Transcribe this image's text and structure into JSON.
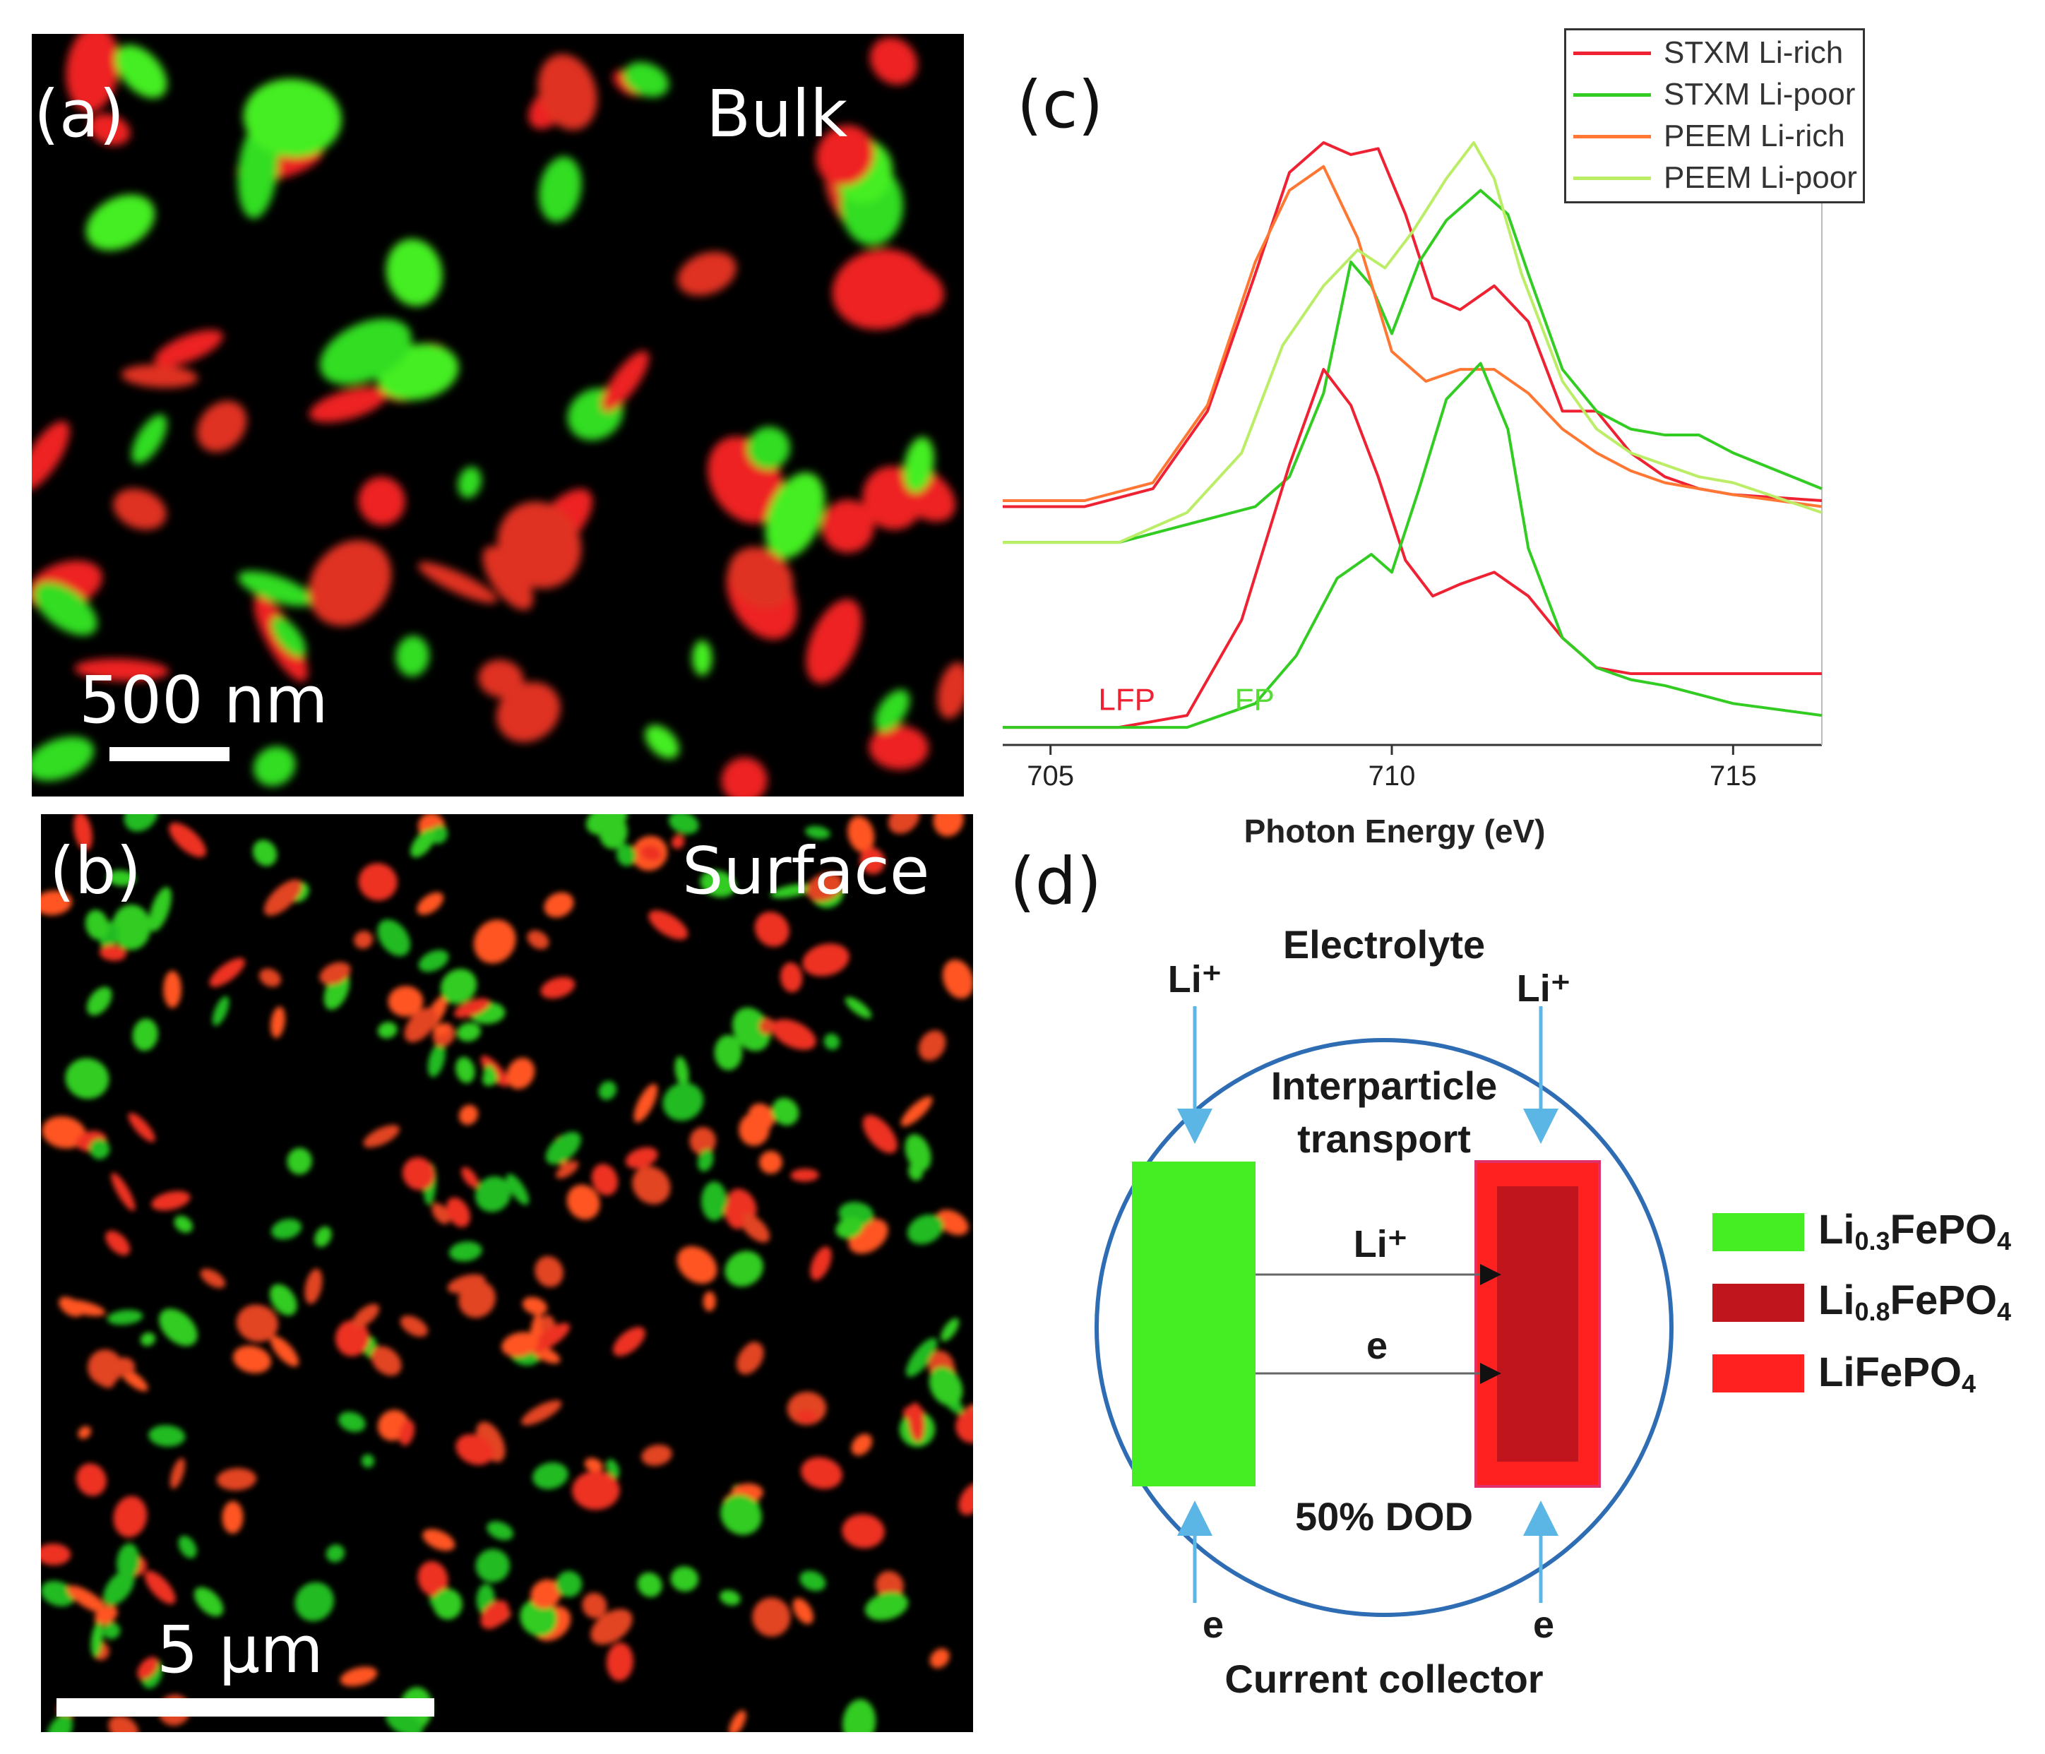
{
  "panel_a": {
    "label": "(a)",
    "region": "Bulk",
    "scale": "500 nm"
  },
  "panel_b": {
    "label": "(b)",
    "region": "Surface",
    "scale": "5 µm"
  },
  "panel_c": {
    "label": "(c)"
  },
  "panel_d": {
    "label": "(d)",
    "electrolyte": "Electrolyte",
    "li_top_left": "Li⁺",
    "li_top_right": "Li⁺",
    "interparticle_line1": "Interparticle",
    "interparticle_line2": "transport",
    "li_middle": "Li⁺",
    "e_middle": "e",
    "dod": "50% DOD",
    "e_bottom_left": "e",
    "e_bottom_right": "e",
    "current_collector": "Current collector",
    "legend": [
      {
        "prefix": "Li",
        "sub": "0.3",
        "suffix": "FePO",
        "sub2": "4",
        "color": "#44ee22"
      },
      {
        "prefix": "Li",
        "sub": "0.8",
        "suffix": "FePO",
        "sub2": "4",
        "color": "#c0151c"
      },
      {
        "prefix": "LiFePO",
        "sub": "4",
        "suffix": "",
        "sub2": "",
        "color": "#ff2020"
      }
    ]
  },
  "chart_data": {
    "type": "line",
    "title": "",
    "xlabel": "Photon Energy (eV)",
    "ylabel": "",
    "xlim": [
      704.3,
      716.3
    ],
    "xticks": [
      705,
      710,
      715
    ],
    "legend_position": "top-right",
    "annotations": [
      {
        "text": "LFP",
        "color": "#ee2233",
        "x": 705.7,
        "y": 0.03
      },
      {
        "text": "FP",
        "color": "#55dd33",
        "x": 707.7,
        "y": 0.03
      }
    ],
    "series": [
      {
        "name": "STXM Li-rich",
        "color": "#ee2233",
        "in_legend": true,
        "x": [
          704.3,
          705.5,
          706.5,
          707.3,
          708.0,
          708.5,
          709.0,
          709.4,
          709.8,
          710.2,
          710.6,
          711.0,
          711.5,
          712.0,
          712.5,
          713.0,
          713.5,
          714.0,
          714.5,
          715.0,
          716.3
        ],
        "y": [
          0.39,
          0.39,
          0.42,
          0.55,
          0.78,
          0.95,
          1.0,
          0.98,
          0.99,
          0.88,
          0.74,
          0.72,
          0.76,
          0.7,
          0.55,
          0.55,
          0.48,
          0.44,
          0.42,
          0.41,
          0.4
        ]
      },
      {
        "name": "STXM Li-poor",
        "color": "#33cc22",
        "in_legend": true,
        "x": [
          704.3,
          706.0,
          707.0,
          708.0,
          708.5,
          709.0,
          709.4,
          709.7,
          710.0,
          710.4,
          710.8,
          711.3,
          711.7,
          712.0,
          712.5,
          713.0,
          713.5,
          714.0,
          714.5,
          715.0,
          716.3
        ],
        "y": [
          0.33,
          0.33,
          0.36,
          0.39,
          0.44,
          0.58,
          0.8,
          0.76,
          0.68,
          0.8,
          0.87,
          0.92,
          0.88,
          0.78,
          0.62,
          0.55,
          0.52,
          0.51,
          0.51,
          0.48,
          0.42
        ]
      },
      {
        "name": "PEEM Li-rich",
        "color": "#ff7733",
        "in_legend": true,
        "x": [
          704.3,
          705.5,
          706.5,
          707.3,
          708.0,
          708.5,
          709.0,
          709.5,
          710.0,
          710.5,
          711.0,
          711.5,
          712.0,
          712.5,
          713.0,
          713.5,
          714.0,
          714.5,
          715.0,
          716.3
        ],
        "y": [
          0.4,
          0.4,
          0.43,
          0.56,
          0.8,
          0.92,
          0.96,
          0.84,
          0.65,
          0.6,
          0.62,
          0.62,
          0.58,
          0.52,
          0.48,
          0.45,
          0.43,
          0.42,
          0.41,
          0.39
        ]
      },
      {
        "name": "PEEM Li-poor",
        "color": "#bbee66",
        "in_legend": true,
        "x": [
          704.3,
          706.0,
          707.0,
          707.8,
          708.4,
          709.0,
          709.5,
          709.9,
          710.3,
          710.8,
          711.2,
          711.5,
          711.9,
          712.5,
          713.0,
          713.5,
          714.0,
          714.5,
          715.0,
          716.3
        ],
        "y": [
          0.33,
          0.33,
          0.38,
          0.48,
          0.66,
          0.76,
          0.82,
          0.79,
          0.85,
          0.94,
          1.0,
          0.94,
          0.78,
          0.6,
          0.52,
          0.48,
          0.46,
          0.44,
          0.43,
          0.38
        ]
      },
      {
        "name": "LFP",
        "color": "#ee2233",
        "in_legend": false,
        "x": [
          704.3,
          706.0,
          707.0,
          707.8,
          708.5,
          709.0,
          709.4,
          709.8,
          710.2,
          710.6,
          711.0,
          711.5,
          712.0,
          712.5,
          713.0,
          713.5,
          714.0,
          715.0,
          716.3
        ],
        "y": [
          0.02,
          0.02,
          0.04,
          0.2,
          0.46,
          0.62,
          0.56,
          0.44,
          0.3,
          0.24,
          0.26,
          0.28,
          0.24,
          0.17,
          0.12,
          0.11,
          0.11,
          0.11,
          0.11
        ]
      },
      {
        "name": "FP",
        "color": "#33cc22",
        "in_legend": false,
        "x": [
          704.3,
          706.0,
          707.0,
          708.0,
          708.6,
          709.2,
          709.7,
          710.0,
          710.4,
          710.8,
          711.3,
          711.7,
          712.0,
          712.5,
          713.0,
          713.5,
          714.0,
          715.0,
          716.3
        ],
        "y": [
          0.02,
          0.02,
          0.02,
          0.06,
          0.14,
          0.27,
          0.31,
          0.28,
          0.42,
          0.57,
          0.63,
          0.52,
          0.32,
          0.17,
          0.12,
          0.1,
          0.09,
          0.06,
          0.04
        ]
      }
    ]
  }
}
